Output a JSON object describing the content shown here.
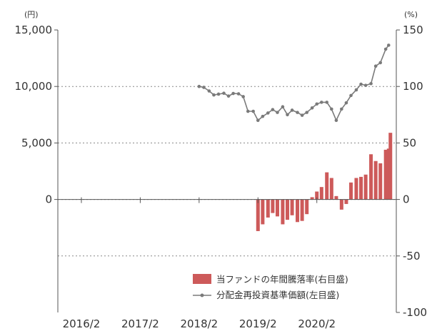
{
  "chart_data": {
    "type": "bar+line",
    "units": {
      "left": "(円)",
      "right": "(%)"
    },
    "y_left": {
      "min": -10000,
      "max": 15000,
      "ticks": [
        "15,000",
        "10,000",
        "5,000",
        "0"
      ]
    },
    "y_right": {
      "min": -100,
      "max": 150,
      "ticks": [
        "150",
        "100",
        "50",
        "0",
        "-50",
        "-100"
      ]
    },
    "x_ticks": [
      "2016/2",
      "2017/2",
      "2018/2",
      "2019/2",
      "2020/2"
    ],
    "gridlines_right": [
      100,
      50,
      0,
      -50
    ],
    "legend": {
      "bar_label": "当ファンドの年間騰落率(右目盛)",
      "line_label": "分配金再投資基準価額(左目盛)"
    },
    "colors": {
      "bar": "#cd5a5a",
      "line": "#7a7a7a",
      "grid": "#888888",
      "axis": "#555555"
    },
    "series_line": {
      "name": "分配金再投資基準価額(左目盛)",
      "axis": "left",
      "points": [
        [
          2018.0,
          10000
        ],
        [
          2018.08,
          9920
        ],
        [
          2018.17,
          9600
        ],
        [
          2018.25,
          9250
        ],
        [
          2018.33,
          9320
        ],
        [
          2018.42,
          9400
        ],
        [
          2018.5,
          9150
        ],
        [
          2018.58,
          9380
        ],
        [
          2018.67,
          9350
        ],
        [
          2018.75,
          9100
        ],
        [
          2018.83,
          7800
        ],
        [
          2018.92,
          7800
        ],
        [
          2019.0,
          7000
        ],
        [
          2019.08,
          7350
        ],
        [
          2019.17,
          7650
        ],
        [
          2019.25,
          7950
        ],
        [
          2019.33,
          7700
        ],
        [
          2019.42,
          8200
        ],
        [
          2019.5,
          7500
        ],
        [
          2019.58,
          7900
        ],
        [
          2019.67,
          7700
        ],
        [
          2019.75,
          7450
        ],
        [
          2019.83,
          7700
        ],
        [
          2019.92,
          8100
        ],
        [
          2020.0,
          8450
        ],
        [
          2020.08,
          8600
        ],
        [
          2020.17,
          8600
        ],
        [
          2020.25,
          8000
        ],
        [
          2020.33,
          7000
        ],
        [
          2020.42,
          8000
        ],
        [
          2020.5,
          8550
        ],
        [
          2020.58,
          9200
        ],
        [
          2020.67,
          9700
        ],
        [
          2020.75,
          10200
        ],
        [
          2020.83,
          10100
        ],
        [
          2020.92,
          10250
        ],
        [
          2021.0,
          11800
        ],
        [
          2021.08,
          12100
        ],
        [
          2021.17,
          13300
        ],
        [
          2021.22,
          13650
        ]
      ]
    },
    "series_bar": {
      "name": "当ファンドの年間騰落率(右目盛)",
      "axis": "right",
      "points": [
        [
          2019.0,
          -28
        ],
        [
          2019.08,
          -22
        ],
        [
          2019.17,
          -16
        ],
        [
          2019.25,
          -12
        ],
        [
          2019.33,
          -15
        ],
        [
          2019.42,
          -22
        ],
        [
          2019.5,
          -18
        ],
        [
          2019.58,
          -14
        ],
        [
          2019.67,
          -20
        ],
        [
          2019.75,
          -19
        ],
        [
          2019.83,
          -13
        ],
        [
          2019.92,
          2
        ],
        [
          2020.0,
          7
        ],
        [
          2020.08,
          11
        ],
        [
          2020.17,
          24
        ],
        [
          2020.25,
          19
        ],
        [
          2020.33,
          3
        ],
        [
          2020.42,
          -9
        ],
        [
          2020.5,
          -4
        ],
        [
          2020.58,
          15
        ],
        [
          2020.67,
          19
        ],
        [
          2020.75,
          20
        ],
        [
          2020.83,
          22
        ],
        [
          2020.92,
          40
        ],
        [
          2021.0,
          34
        ],
        [
          2021.08,
          32
        ],
        [
          2021.17,
          44
        ],
        [
          2021.22,
          45
        ],
        [
          2021.25,
          59
        ]
      ]
    },
    "x_range": [
      2015.6,
      2021.35
    ]
  }
}
